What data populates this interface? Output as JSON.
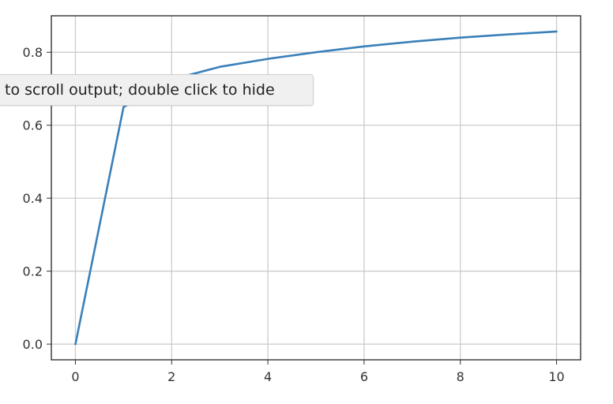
{
  "tooltip": {
    "text": "to scroll output; double click to hide"
  },
  "chart_data": {
    "type": "line",
    "title": "",
    "xlabel": "",
    "ylabel": "",
    "xlim": [
      -0.5,
      10.5
    ],
    "ylim": [
      -0.043,
      0.9
    ],
    "xticks": [
      0,
      2,
      4,
      6,
      8,
      10
    ],
    "yticks": [
      0.0,
      0.2,
      0.4,
      0.6,
      0.8
    ],
    "grid": true,
    "series": [
      {
        "color": "#3a80b9",
        "x": [
          0,
          1,
          2,
          3,
          4,
          5,
          6,
          7,
          8,
          9,
          10
        ],
        "y": [
          0.0,
          0.65,
          0.725,
          0.76,
          0.782,
          0.8,
          0.816,
          0.829,
          0.84,
          0.849,
          0.857
        ]
      }
    ]
  }
}
